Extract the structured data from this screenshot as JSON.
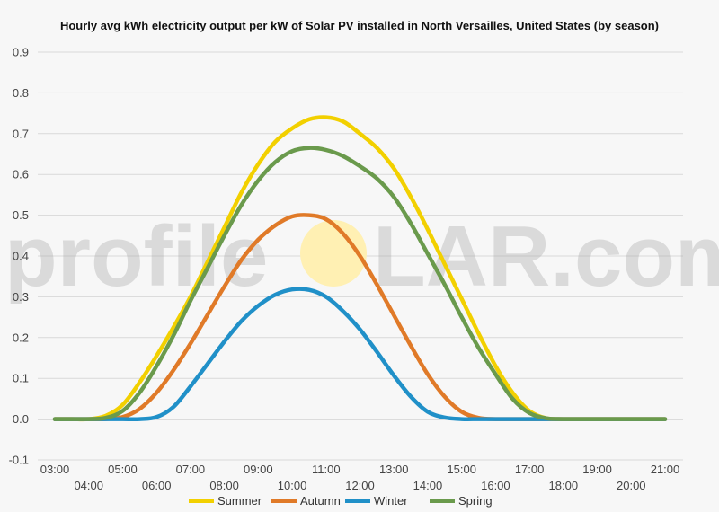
{
  "chart_data": {
    "type": "line",
    "title": "Hourly avg kWh electricity output per kW of Solar PV installed in North Versailles, United States (by season)",
    "xlabel": "",
    "ylabel": "",
    "ylim": [
      -0.1,
      0.9
    ],
    "yticks": [
      "-0.1",
      "0.0",
      "0.1",
      "0.2",
      "0.3",
      "0.4",
      "0.5",
      "0.6",
      "0.7",
      "0.8",
      "0.9"
    ],
    "x": [
      3,
      3.5,
      4,
      4.5,
      5,
      5.5,
      6,
      6.5,
      7,
      7.5,
      8,
      8.5,
      9,
      9.5,
      10,
      10.5,
      11,
      11.5,
      12,
      12.5,
      13,
      13.5,
      14,
      14.5,
      15,
      15.5,
      16,
      16.5,
      17,
      17.5,
      18,
      18.5,
      19,
      19.5,
      20,
      20.5,
      21
    ],
    "xticks": [
      "03:00",
      "04:00",
      "05:00",
      "06:00",
      "07:00",
      "08:00",
      "09:00",
      "10:00",
      "11:00",
      "12:00",
      "13:00",
      "14:00",
      "15:00",
      "16:00",
      "17:00",
      "18:00",
      "19:00",
      "20:00",
      "21:00"
    ],
    "grid": true,
    "legend_position": "bottom",
    "series": [
      {
        "name": "Summer",
        "color": "#f2d000",
        "values": [
          0,
          0,
          0,
          0.008,
          0.035,
          0.09,
          0.155,
          0.225,
          0.3,
          0.385,
          0.47,
          0.555,
          0.625,
          0.68,
          0.713,
          0.735,
          0.74,
          0.73,
          0.7,
          0.665,
          0.615,
          0.545,
          0.465,
          0.38,
          0.295,
          0.21,
          0.13,
          0.065,
          0.02,
          0.002,
          0,
          0,
          0,
          0,
          0,
          0,
          0
        ]
      },
      {
        "name": "Autumn",
        "color": "#e07a28",
        "values": [
          0,
          0,
          0,
          0,
          0.005,
          0.025,
          0.065,
          0.12,
          0.185,
          0.255,
          0.325,
          0.39,
          0.44,
          0.475,
          0.497,
          0.5,
          0.49,
          0.455,
          0.4,
          0.33,
          0.255,
          0.18,
          0.11,
          0.055,
          0.018,
          0.003,
          0,
          0,
          0,
          0,
          0,
          0,
          0,
          0,
          0,
          0,
          0
        ]
      },
      {
        "name": "Winter",
        "color": "#2090c8",
        "values": [
          0,
          0,
          0,
          0,
          0,
          0,
          0.005,
          0.03,
          0.08,
          0.135,
          0.19,
          0.24,
          0.278,
          0.305,
          0.318,
          0.317,
          0.3,
          0.265,
          0.22,
          0.165,
          0.107,
          0.055,
          0.018,
          0.004,
          0,
          0,
          0,
          0,
          0,
          0,
          0,
          0,
          0,
          0,
          0,
          0,
          0
        ]
      },
      {
        "name": "Spring",
        "color": "#6a9a4c",
        "values": [
          0,
          0,
          0,
          0.003,
          0.02,
          0.065,
          0.13,
          0.205,
          0.29,
          0.37,
          0.45,
          0.525,
          0.585,
          0.63,
          0.657,
          0.665,
          0.66,
          0.645,
          0.62,
          0.59,
          0.545,
          0.48,
          0.405,
          0.33,
          0.25,
          0.175,
          0.11,
          0.05,
          0.015,
          0.002,
          0,
          0,
          0,
          0,
          0,
          0,
          0
        ]
      }
    ]
  },
  "watermark": {
    "text_left": "profile",
    "text_right": "LAR.com",
    "sun_color": "#fff0b3"
  }
}
